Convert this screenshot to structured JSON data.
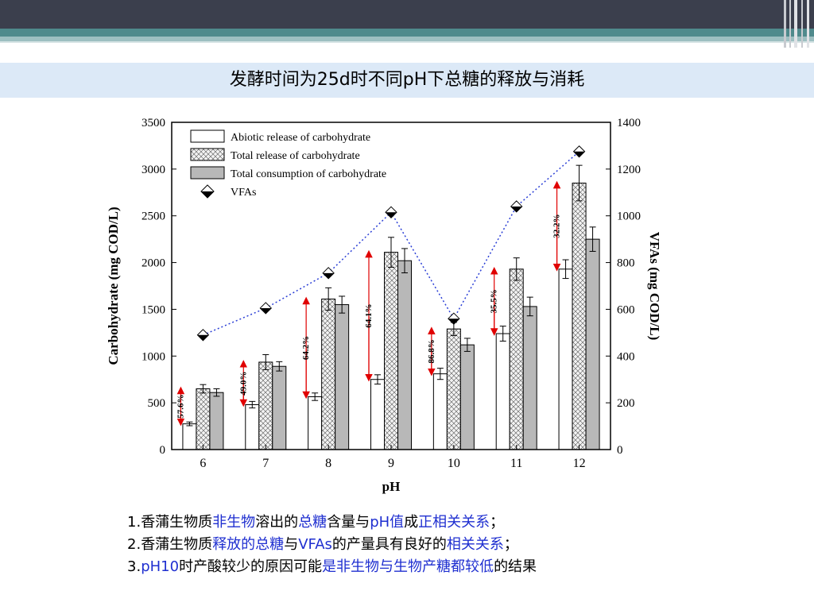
{
  "slide": {
    "title": "发酵时间为25d时不同pH下总糖的释放与消耗"
  },
  "chart_data": {
    "type": "bar",
    "categories": [
      "6",
      "7",
      "8",
      "9",
      "10",
      "11",
      "12"
    ],
    "xlabel": "pH",
    "ylabel": "Carbohydrate (mg COD/L)",
    "ylabel_right": "VFAs (mg COD/L)",
    "ylim": [
      0,
      3500
    ],
    "ylim_right": [
      0,
      1400
    ],
    "yticks": [
      "0",
      "500",
      "1000",
      "1500",
      "2000",
      "2500",
      "3000",
      "3500"
    ],
    "yticks_right": [
      "0",
      "200",
      "400",
      "600",
      "800",
      "1000",
      "1200",
      "1400"
    ],
    "series": [
      {
        "name": "Abiotic release of carbohydrate",
        "values": [
          275,
          480,
          565,
          750,
          810,
          1240,
          1930
        ],
        "errors": [
          20,
          35,
          40,
          50,
          60,
          80,
          100
        ]
      },
      {
        "name": "Total release of carbohydrate",
        "values": [
          650,
          935,
          1610,
          2110,
          1290,
          1930,
          2850
        ],
        "errors": [
          45,
          80,
          120,
          160,
          70,
          120,
          190
        ]
      },
      {
        "name": "Total consumption of carbohydrate",
        "values": [
          610,
          890,
          1550,
          2020,
          1120,
          1530,
          2250
        ],
        "errors": [
          40,
          50,
          90,
          130,
          70,
          100,
          130
        ]
      }
    ],
    "line_series": {
      "name": "VFAs",
      "values": [
        490,
        605,
        755,
        1015,
        560,
        1040,
        1275
      ]
    },
    "annotations": [
      "57.6%",
      "49.0%",
      "64.2%",
      "64.1%",
      "86.8%",
      "35.5%",
      "32.2%"
    ],
    "legend_position": "top-left",
    "colors": {
      "abiotic": "#ffffff",
      "total_release": "#e6e6e6",
      "consumption": "#b8b8b8",
      "vfa_line": "#2b3fd6",
      "arrow": "#e00000"
    }
  },
  "notes": [
    {
      "prefix": "1.",
      "parts": [
        {
          "t": "香蒲生物质",
          "hl": false
        },
        {
          "t": "非生物",
          "hl": true
        },
        {
          "t": "溶出的",
          "hl": false
        },
        {
          "t": "总糖",
          "hl": true
        },
        {
          "t": "含量与",
          "hl": false
        },
        {
          "t": "pH值",
          "hl": true
        },
        {
          "t": "成",
          "hl": false
        },
        {
          "t": "正相关关系",
          "hl": true
        },
        {
          "t": "；",
          "hl": false
        }
      ]
    },
    {
      "prefix": "2.",
      "parts": [
        {
          "t": "香蒲生物质",
          "hl": false
        },
        {
          "t": "释放的总糖",
          "hl": true
        },
        {
          "t": "与",
          "hl": false
        },
        {
          "t": "VFAs",
          "hl": true
        },
        {
          "t": "的产量具有良好的",
          "hl": false
        },
        {
          "t": "相关关系",
          "hl": true
        },
        {
          "t": "；",
          "hl": false
        }
      ]
    },
    {
      "prefix": "3.",
      "parts": [
        {
          "t": "pH10",
          "hl": true
        },
        {
          "t": "时产酸较少的原因可能",
          "hl": false
        },
        {
          "t": "是非生物与生物产糖都较低",
          "hl": true
        },
        {
          "t": "的结果",
          "hl": false
        }
      ]
    }
  ]
}
